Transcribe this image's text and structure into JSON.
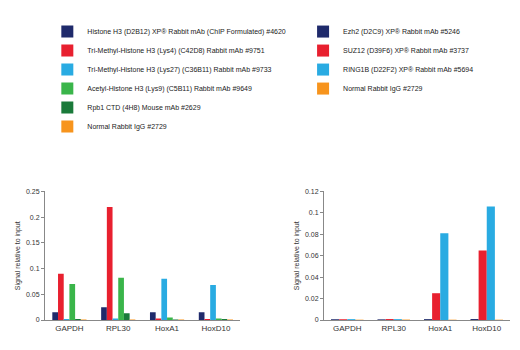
{
  "chart_data": [
    {
      "type": "bar",
      "y_label": "Signal relative to input",
      "categories": [
        "GAPDH",
        "RPL30",
        "HoxA1",
        "HoxD10"
      ],
      "series": [
        {
          "name": "Histone H3 (D2B12) XP® Rabbit mAb (ChIP Formulated) #4620",
          "color": "#1f2a6b",
          "values": [
            0.015,
            0.025,
            0.015,
            0.015
          ]
        },
        {
          "name": "Tri-Methyl-Histone H3 (Lys4) (C42D8) Rabbit mAb #9751",
          "color": "#e8202f",
          "values": [
            0.09,
            0.22,
            0.003,
            0.002
          ]
        },
        {
          "name": "Tri-Methyl-Histone H3 (Lys27) (C36B11) Rabbit mAb #9733",
          "color": "#29abe2",
          "values": [
            0.002,
            0.003,
            0.08,
            0.068
          ]
        },
        {
          "name": "Acetyl-Histone H3 (Lys9) (C5B11) Rabbit mAb #9649",
          "color": "#3ab54a",
          "values": [
            0.07,
            0.082,
            0.005,
            0.003
          ]
        },
        {
          "name": "Rpb1 CTD (4H8) Mouse mAb #2629",
          "color": "#1a7a3a",
          "values": [
            0.002,
            0.013,
            0.001,
            0.002
          ]
        },
        {
          "name": "Normal Rabbit IgG #2729",
          "color": "#f7941d",
          "values": [
            0.001,
            0.001,
            0.001,
            0.001
          ]
        }
      ],
      "ylim": [
        0,
        0.25
      ],
      "yticks": [
        0,
        0.05,
        0.1,
        0.15,
        0.2,
        0.25
      ],
      "grid": false,
      "legend": "top"
    },
    {
      "type": "bar",
      "y_label": "Signal relative to input",
      "categories": [
        "GAPDH",
        "RPL30",
        "HoxA1",
        "HoxD10"
      ],
      "series": [
        {
          "name": "Ezh2 (D2C9) XP® Rabbit mAb #5246",
          "color": "#1f2a6b",
          "values": [
            0.0007,
            0.0006,
            0.0008,
            0.0009
          ]
        },
        {
          "name": "SUZ12 (D39F6) XP® Rabbit mAb #3737",
          "color": "#e8202f",
          "values": [
            0.0007,
            0.0009,
            0.025,
            0.065
          ]
        },
        {
          "name": "RING1B (D22F2) XP® Rabbit mAb #5694",
          "color": "#29abe2",
          "values": [
            0.0008,
            0.0008,
            0.081,
            0.106
          ]
        },
        {
          "name": "Normal Rabbit IgG #2729",
          "color": "#f7941d",
          "values": [
            0.0003,
            0.0004,
            0.0003,
            0.0003
          ]
        }
      ],
      "ylim": [
        0,
        0.12
      ],
      "yticks": [
        0,
        0.02,
        0.04,
        0.06,
        0.08,
        0.1,
        0.12
      ],
      "grid": false,
      "legend": "top"
    }
  ]
}
